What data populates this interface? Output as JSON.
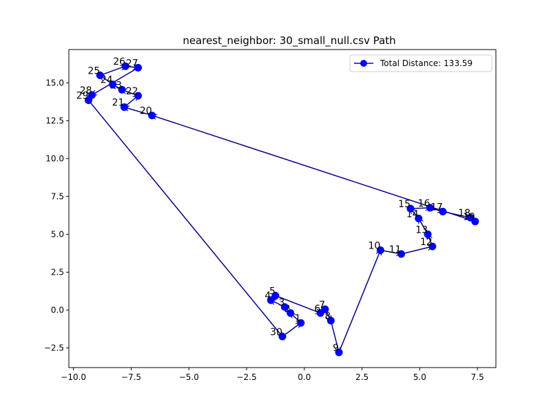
{
  "chart_data": {
    "type": "line",
    "title": "nearest_neighbor: 30_small_null.csv Path",
    "xlabel": "",
    "ylabel": "",
    "xlim": [
      -10.2,
      8.3
    ],
    "ylim": [
      -3.8,
      17.2
    ],
    "xticks": [
      -10.0,
      -7.5,
      -5.0,
      -2.5,
      0.0,
      2.5,
      5.0,
      7.5
    ],
    "xtick_labels": [
      "−10.0",
      "−7.5",
      "−5.0",
      "−2.5",
      "0.0",
      "2.5",
      "5.0",
      "7.5"
    ],
    "yticks": [
      -2.5,
      0.0,
      2.5,
      5.0,
      7.5,
      10.0,
      12.5,
      15.0
    ],
    "ytick_labels": [
      "−2.5",
      "0.0",
      "2.5",
      "5.0",
      "7.5",
      "10.0",
      "12.5",
      "15.0"
    ],
    "grid": false,
    "legend": {
      "position": "top-right",
      "entries": [
        "Total Distance: 133.59"
      ]
    },
    "colors": {
      "marker": "#0000ff",
      "path": "#000080"
    },
    "series": [
      {
        "name": "Total Distance: 133.59",
        "points": [
          {
            "label": "30",
            "x": -0.95,
            "y": -1.75
          },
          {
            "label": "1",
            "x": -0.15,
            "y": -0.85
          },
          {
            "label": "2",
            "x": -0.6,
            "y": -0.2
          },
          {
            "label": "3",
            "x": -0.85,
            "y": 0.2
          },
          {
            "label": "4",
            "x": -1.45,
            "y": 0.65
          },
          {
            "label": "5",
            "x": -1.25,
            "y": 0.95
          },
          {
            "label": "6",
            "x": 0.7,
            "y": -0.2
          },
          {
            "label": "7",
            "x": 0.9,
            "y": 0.05
          },
          {
            "label": "8",
            "x": 1.15,
            "y": -0.7
          },
          {
            "label": "9",
            "x": 1.5,
            "y": -2.8
          },
          {
            "label": "10",
            "x": 3.3,
            "y": 3.95
          },
          {
            "label": "11",
            "x": 4.2,
            "y": 3.7
          },
          {
            "label": "12",
            "x": 5.55,
            "y": 4.2
          },
          {
            "label": "13",
            "x": 5.35,
            "y": 5.0
          },
          {
            "label": "14",
            "x": 4.95,
            "y": 6.05
          },
          {
            "label": "15",
            "x": 4.6,
            "y": 6.7
          },
          {
            "label": "16",
            "x": 5.45,
            "y": 6.75
          },
          {
            "label": "17",
            "x": 6.0,
            "y": 6.5
          },
          {
            "label": "18",
            "x": 7.2,
            "y": 6.1
          },
          {
            "label": "19",
            "x": 7.4,
            "y": 5.85
          },
          {
            "label": "20",
            "x": -6.6,
            "y": 12.85
          },
          {
            "label": "21",
            "x": -7.8,
            "y": 13.4
          },
          {
            "label": "22",
            "x": -7.2,
            "y": 14.15
          },
          {
            "label": "23",
            "x": -7.9,
            "y": 14.55
          },
          {
            "label": "24",
            "x": -8.3,
            "y": 14.9
          },
          {
            "label": "25",
            "x": -8.85,
            "y": 15.5
          },
          {
            "label": "26",
            "x": -7.75,
            "y": 16.1
          },
          {
            "label": "27",
            "x": -7.2,
            "y": 16.0
          },
          {
            "label": "28",
            "x": -9.2,
            "y": 14.2
          },
          {
            "label": "29",
            "x": -9.35,
            "y": 13.85
          },
          {
            "label": "30",
            "x": -0.95,
            "y": -1.75
          }
        ]
      }
    ]
  }
}
